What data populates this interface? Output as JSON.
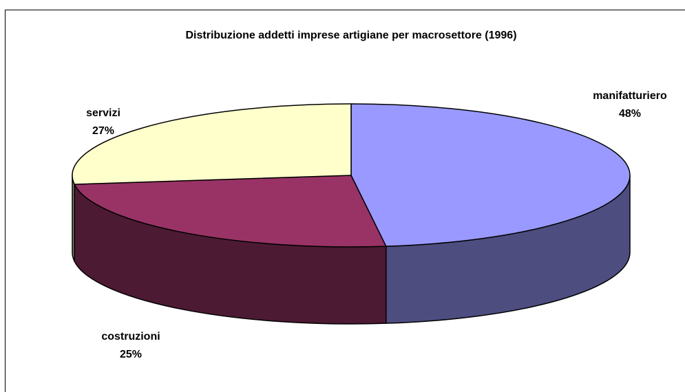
{
  "chart_data": {
    "type": "pie",
    "title": "Distribuzione addetti imprese artigiane per macrosettore (1996)",
    "categories": [
      "manifatturiero",
      "costruzioni",
      "servizi"
    ],
    "values": [
      48,
      25,
      27
    ],
    "value_labels": [
      "48%",
      "25%",
      "27%"
    ],
    "colors": [
      "#9999ff",
      "#993366",
      "#ffffcc"
    ],
    "side_colors": [
      "#4d4d80",
      "#4d1a33",
      "#808066"
    ]
  }
}
